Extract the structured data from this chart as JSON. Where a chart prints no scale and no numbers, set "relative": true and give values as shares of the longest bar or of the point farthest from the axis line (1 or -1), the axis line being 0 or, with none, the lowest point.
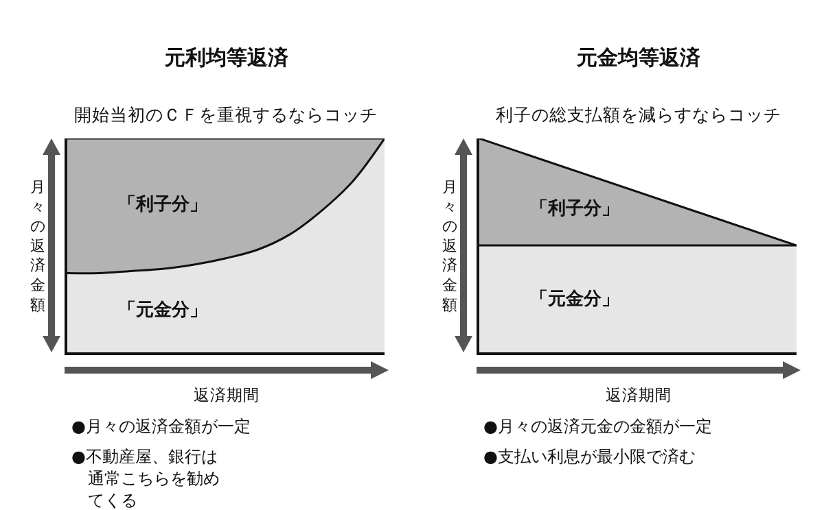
{
  "chart_data": [
    {
      "type": "area",
      "title": "元利均等返済",
      "subtitle": "開始当初のＣＦを重視するならコッチ",
      "xlabel": "返済期間",
      "ylabel": "月々の返済金額",
      "relative": true,
      "stacked": true,
      "categories": [
        null,
        null,
        null,
        null,
        null,
        null,
        null,
        null,
        null,
        null,
        null
      ],
      "series": [
        {
          "name": "「元金分」",
          "color": "#e6e6e6",
          "values": [
            0.37,
            0.37,
            0.38,
            0.39,
            0.41,
            0.44,
            0.48,
            0.55,
            0.66,
            0.8,
            1.0
          ]
        },
        {
          "name": "「利子分」",
          "color": "#b3b3b3",
          "values": [
            0.63,
            0.63,
            0.62,
            0.61,
            0.59,
            0.56,
            0.52,
            0.45,
            0.34,
            0.2,
            0
          ]
        }
      ],
      "annotations": [
        "●月々の返済金額が一定",
        "●不動産屋、銀行は通常こちらを勧めてくる"
      ]
    },
    {
      "type": "area",
      "title": "元金均等返済",
      "subtitle": "利子の総支払額を減らすならコッチ",
      "xlabel": "返済期間",
      "ylabel": "月々の返済金額",
      "relative": true,
      "stacked": true,
      "categories": [
        null,
        null
      ],
      "series": [
        {
          "name": "「元金分」",
          "color": "#e6e6e6",
          "values": [
            0.5,
            0.5
          ]
        },
        {
          "name": "「利子分」",
          "color": "#b3b3b3",
          "values": [
            0.5,
            0
          ]
        }
      ],
      "annotations": [
        "●月々の返済元金の金額が一定",
        "●支払い利息が最小限で済む"
      ]
    }
  ]
}
